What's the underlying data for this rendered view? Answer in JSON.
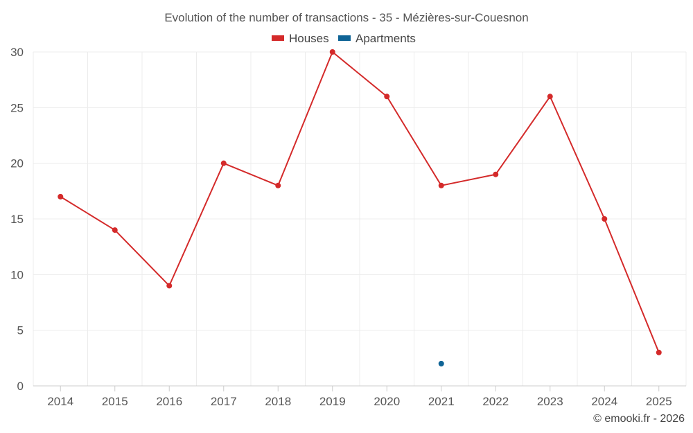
{
  "chart_data": {
    "type": "line",
    "title": "Evolution of the number of transactions - 35 - Mézières-sur-Couesnon",
    "categories": [
      "2014",
      "2015",
      "2016",
      "2017",
      "2018",
      "2019",
      "2020",
      "2021",
      "2022",
      "2023",
      "2024",
      "2025"
    ],
    "series": [
      {
        "name": "Houses",
        "color": "#d42a2a",
        "values": [
          17,
          14,
          9,
          20,
          18,
          30,
          26,
          18,
          19,
          26,
          15,
          3
        ]
      },
      {
        "name": "Apartments",
        "color": "#0f6496",
        "values": [
          null,
          null,
          null,
          null,
          null,
          null,
          null,
          2,
          null,
          null,
          null,
          null
        ]
      }
    ],
    "yticks": [
      0,
      5,
      10,
      15,
      20,
      25,
      30
    ],
    "ylim": [
      0,
      30
    ],
    "grid": true,
    "legend": "top-center",
    "xlabel": "",
    "ylabel": ""
  },
  "credit": "© emooki.fr - 2026"
}
